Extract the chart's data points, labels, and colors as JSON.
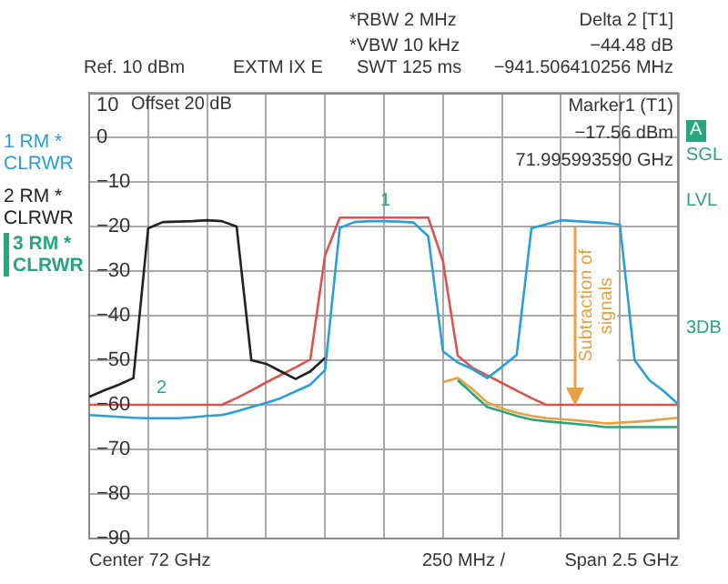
{
  "chart_data": {
    "type": "line",
    "categories": [
      null,
      null,
      null,
      null,
      null,
      null,
      null,
      null,
      null,
      null,
      null,
      null,
      null,
      null,
      null,
      null,
      null,
      null,
      null,
      null,
      null,
      null,
      null,
      null,
      null,
      null,
      null,
      null,
      null,
      null,
      null,
      null,
      null,
      null,
      null,
      null,
      null,
      null,
      null,
      null,
      null
    ],
    "ylim": [
      -90,
      10
    ],
    "yticks": [
      {
        "value": -90,
        "label": "−90"
      },
      {
        "value": -80,
        "label": "−80"
      },
      {
        "value": -70,
        "label": "−70"
      },
      {
        "value": -60,
        "label": "−60"
      },
      {
        "value": -50,
        "label": "−50"
      },
      {
        "value": -40,
        "label": "−40"
      },
      {
        "value": -30,
        "label": "−30"
      },
      {
        "value": -20,
        "label": "−20"
      },
      {
        "value": -10,
        "label": "−10"
      },
      0,
      10
    ],
    "grid": true,
    "marker": "none",
    "line_style": "solid",
    "series": [
      {
        "name": "1 RM * CLRWR",
        "color": "#2a9fd6",
        "values": [
          -62.3,
          -62.5,
          -62.7,
          -62.9,
          -63,
          -63,
          -63,
          -62.8,
          -62.5,
          -62.3,
          -61.5,
          -60.5,
          -59.6,
          -58.5,
          -57,
          -55.5,
          -52.2,
          -20.3,
          -19,
          -18.8,
          -18.8,
          -18.9,
          -19.1,
          -22.2,
          -48,
          -50.5,
          -52,
          -54,
          -51.5,
          -48.8,
          -20.4,
          -19.5,
          -18.6,
          -18.8,
          -19,
          -19.2,
          -19.6,
          -50,
          -54.5,
          -57,
          -60
        ]
      },
      {
        "name": "2 RM * CLRWR",
        "color": "#222222",
        "values": [
          -58.2,
          -56.8,
          -55.5,
          -54,
          -20.4,
          -19,
          -18.9,
          -18.8,
          -18.6,
          -18.8,
          -20,
          -50,
          -50.8,
          -52.5,
          -54.2,
          -52.5,
          -49.5,
          null,
          null,
          null,
          null,
          null,
          null,
          null,
          null,
          null,
          null,
          null,
          null,
          null,
          null,
          null,
          null,
          null,
          null,
          null,
          null,
          null,
          null,
          null,
          null
        ]
      },
      {
        "name": "3 RM * CLRWR",
        "color": "#2aa57a",
        "values": [
          null,
          null,
          null,
          null,
          null,
          null,
          null,
          null,
          null,
          null,
          null,
          null,
          null,
          null,
          null,
          null,
          null,
          null,
          null,
          null,
          null,
          null,
          null,
          null,
          null,
          -54.5,
          -57.5,
          -60.5,
          -61.5,
          -62.5,
          -63.3,
          -63.7,
          -64,
          -64.3,
          -64.6,
          -65,
          -65,
          -65,
          -65,
          -65,
          -65
        ]
      },
      {
        "color": "#e8a040",
        "values": [
          null,
          null,
          null,
          null,
          null,
          null,
          null,
          null,
          null,
          null,
          null,
          null,
          null,
          null,
          null,
          null,
          null,
          null,
          null,
          null,
          null,
          null,
          null,
          null,
          -54.9,
          -54,
          -56.5,
          -59.5,
          -60.8,
          -61.8,
          -62.5,
          -63,
          -63.2,
          -63.5,
          -63.8,
          -64.2,
          -64,
          -63.8,
          -63.6,
          -63.2,
          -62.9
        ]
      },
      {
        "color": "#d9534f",
        "values": [
          -60,
          -60,
          -60,
          -60,
          -60,
          -60,
          -60,
          -60,
          -60,
          -60,
          -58.5,
          -56.8,
          -55,
          -53.3,
          -51.6,
          -49.8,
          -26.5,
          -18,
          -18,
          -18,
          -18,
          -18,
          -18,
          -18,
          -27.8,
          -49,
          -51.7,
          -53.4,
          -55.1,
          -56.8,
          -58.5,
          -60,
          -60,
          -60,
          -60,
          -60,
          -60,
          -60,
          -60,
          -60,
          -60
        ]
      }
    ],
    "annotations": [
      "Ref. 10 dBm",
      "EXTM IX E",
      "*RBW  2 MHz",
      "*VBW 10 kHz",
      "SWT 125 ms",
      "Delta 2 [T1]",
      "−44.48 dB",
      "−941.506410256 MHz",
      "Offset 20 dB",
      "Marker1 (T1)",
      "−17.56 dBm",
      "71.995993590 GHz",
      "A",
      "SGL",
      "LVL",
      "3DB",
      "Center 72 GHz",
      "250 MHz /",
      "Span 2.5 GHz",
      "Subtraction of signals",
      "1",
      "2"
    ]
  }
}
